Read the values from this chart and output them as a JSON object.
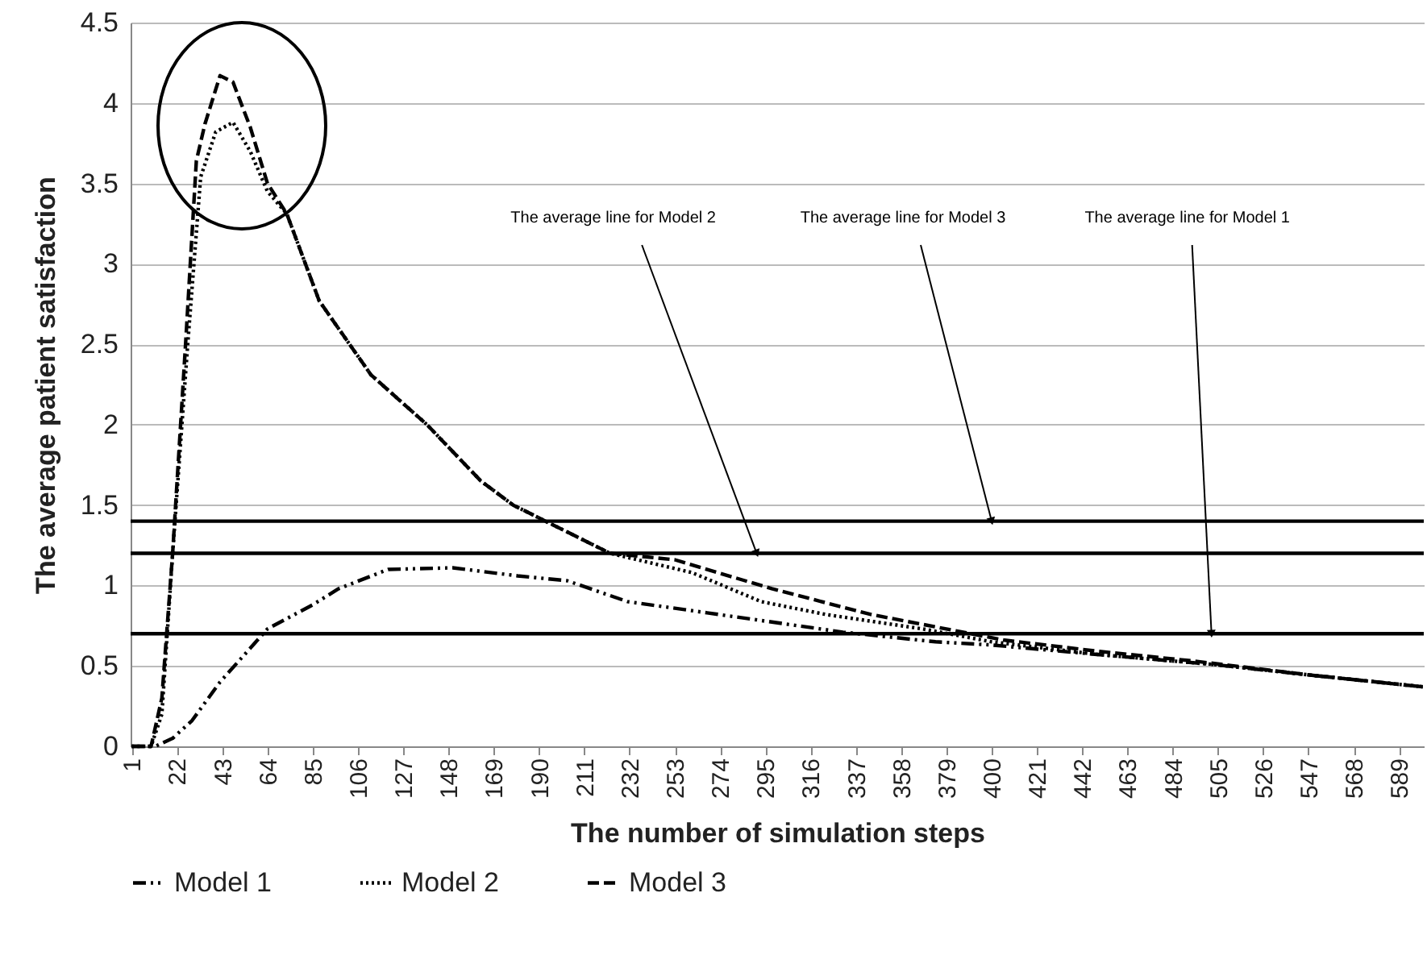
{
  "chart_data": {
    "type": "line",
    "xlabel": "The number of simulation steps",
    "ylabel": "The average patient satisfaction",
    "xlim": [
      0.5,
      600.5
    ],
    "xticks": [
      1,
      22,
      43,
      64,
      85,
      106,
      127,
      148,
      169,
      190,
      211,
      232,
      253,
      274,
      295,
      316,
      337,
      358,
      379,
      400,
      421,
      442,
      463,
      484,
      505,
      526,
      547,
      568,
      589
    ],
    "ylim": [
      0,
      4.5
    ],
    "yticks": [
      0,
      0.5,
      1,
      1.5,
      2,
      2.5,
      3,
      3.5,
      4,
      4.5
    ],
    "grid": "y",
    "legend": "bottom",
    "series": [
      {
        "name": "Model 1",
        "color": "#000000",
        "line_style": "dashdot",
        "x": [
          1,
          12,
          20,
          29,
          42,
          56,
          64,
          85,
          97,
          120,
          150,
          180,
          203,
          231,
          268,
          331,
          374,
          400,
          450,
          502,
          550,
          600
        ],
        "values": [
          0,
          0,
          0.05,
          0.16,
          0.4,
          0.61,
          0.73,
          0.88,
          0.98,
          1.1,
          1.11,
          1.06,
          1.03,
          0.9,
          0.83,
          0.71,
          0.65,
          0.63,
          0.57,
          0.51,
          0.44,
          0.37
        ]
      },
      {
        "name": "Model 2",
        "color": "#000000",
        "line_style": "dotted",
        "x": [
          1,
          10,
          15,
          20,
          27,
          33,
          40,
          48,
          56,
          64,
          73,
          88,
          112,
          138,
          163,
          178,
          193,
          223,
          261,
          293,
          323,
          368,
          400,
          450,
          502,
          550,
          600
        ],
        "values": [
          0,
          0,
          0.2,
          1.2,
          2.5,
          3.54,
          3.82,
          3.88,
          3.7,
          3.45,
          3.31,
          2.77,
          2.31,
          2.0,
          1.65,
          1.5,
          1.4,
          1.2,
          1.08,
          0.9,
          0.82,
          0.73,
          0.65,
          0.57,
          0.51,
          0.44,
          0.37
        ]
      },
      {
        "name": "Model 3",
        "color": "#000000",
        "line_style": "dashed",
        "x": [
          1,
          10,
          15,
          20,
          26,
          31,
          35,
          42,
          48,
          56,
          64,
          73,
          88,
          112,
          138,
          163,
          178,
          193,
          223,
          253,
          298,
          344,
          406,
          450,
          494,
          550,
          600
        ],
        "values": [
          0,
          0,
          0.3,
          1.2,
          2.5,
          3.64,
          3.87,
          4.17,
          4.13,
          3.85,
          3.5,
          3.31,
          2.77,
          2.31,
          2.0,
          1.65,
          1.5,
          1.4,
          1.2,
          1.16,
          0.98,
          0.82,
          0.66,
          0.59,
          0.53,
          0.44,
          0.37
        ]
      }
    ],
    "ref_lines": [
      {
        "axis": "y",
        "value": 1.4,
        "color": "#000000"
      },
      {
        "axis": "y",
        "value": 1.2,
        "color": "#000000"
      },
      {
        "axis": "y",
        "value": 0.7,
        "color": "#000000"
      }
    ],
    "annotations": [
      {
        "text": "The average line for Model 2",
        "x": 291,
        "y": 1.2
      },
      {
        "text": "The average line for Model 3",
        "x": 400,
        "y": 1.4
      },
      {
        "text": "The average line for Model 1",
        "x": 502,
        "y": 0.7
      }
    ]
  }
}
